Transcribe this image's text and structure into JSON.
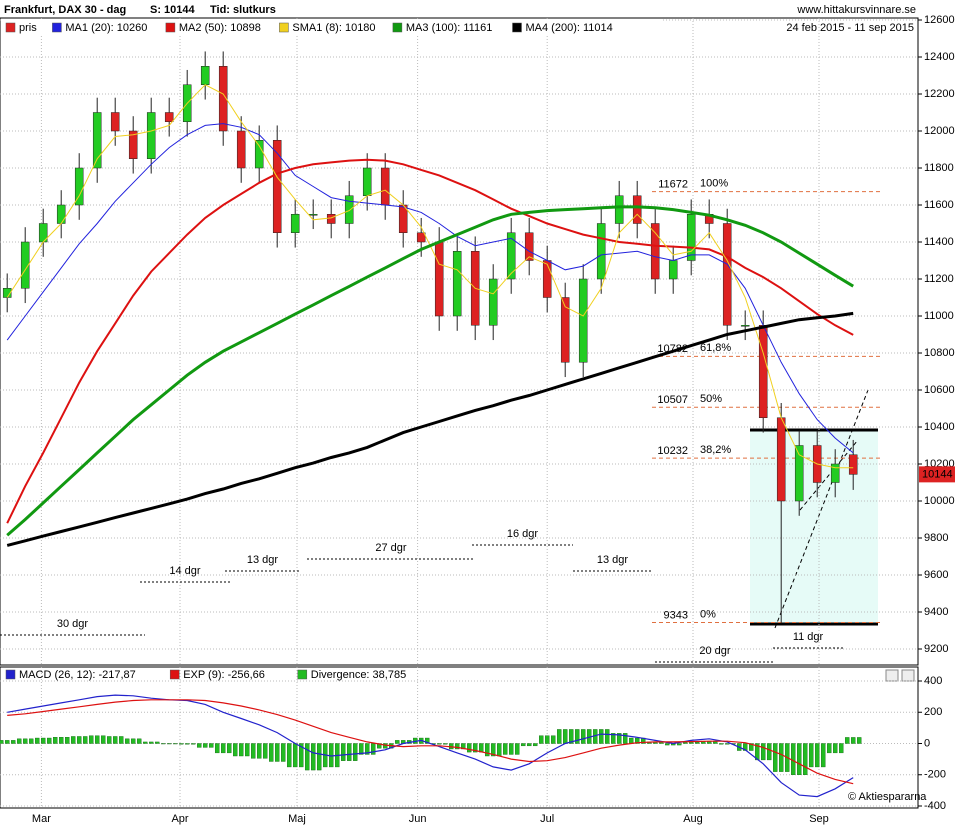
{
  "chart_data": [
    {
      "type": "candlestick",
      "title": "Frankfurt, DAX 30 - dag",
      "header": [
        "S: 10144",
        "Tid: slutkurs"
      ],
      "source": "www.hittakursvinnare.se",
      "date_range": "24 feb 2015 - 11 sep 2015",
      "xlim": [
        -0.4,
        50.6
      ],
      "xticks": [
        {
          "value": 1.9,
          "label": "Mar"
        },
        {
          "value": 9.6,
          "label": "Apr"
        },
        {
          "value": 16.1,
          "label": "Maj"
        },
        {
          "value": 22.8,
          "label": "Jun"
        },
        {
          "value": 30,
          "label": "Jul"
        },
        {
          "value": 38.1,
          "label": "Aug"
        },
        {
          "value": 45.1,
          "label": "Sep"
        }
      ],
      "ylim": [
        9200,
        12600
      ],
      "yticks": [
        9200,
        9400,
        9600,
        9800,
        10000,
        10200,
        10400,
        10600,
        10800,
        11000,
        11200,
        11400,
        11600,
        11800,
        12000,
        12200,
        12400,
        12600
      ],
      "grid": true,
      "candles": {
        "name": "pris",
        "color": "#dd2222",
        "up_color": "#22cc22",
        "open": [
          11100,
          11150,
          11400,
          11500,
          11600,
          11800,
          12100,
          12000,
          11850,
          12100,
          12050,
          12250,
          12350,
          12000,
          11800,
          11950,
          11450,
          11550,
          11550,
          11500,
          11650,
          11800,
          11600,
          11450,
          11400,
          11000,
          11350,
          10950,
          11200,
          11450,
          11300,
          11100,
          10750,
          11200,
          11500,
          11650,
          11500,
          11200,
          11300,
          11550,
          11500,
          10950,
          10950,
          10450,
          10000,
          10300,
          10100,
          10250
        ],
        "high": [
          11230,
          11480,
          11580,
          11680,
          11880,
          12180,
          12180,
          12080,
          12180,
          12180,
          12330,
          12430,
          12430,
          12080,
          12030,
          12030,
          11630,
          11630,
          11630,
          11730,
          11880,
          11880,
          11680,
          11530,
          11480,
          11430,
          11430,
          11280,
          11530,
          11530,
          11380,
          11180,
          11280,
          11580,
          11730,
          11730,
          11580,
          11380,
          11630,
          11630,
          11580,
          11030,
          11030,
          10530,
          10380,
          10380,
          10280,
          10330
        ],
        "low": [
          11020,
          11070,
          11320,
          11420,
          11520,
          11720,
          11920,
          11770,
          11770,
          11970,
          11970,
          12170,
          11920,
          11720,
          11720,
          11370,
          11370,
          11470,
          11420,
          11420,
          11570,
          11520,
          11370,
          11320,
          10920,
          10920,
          10870,
          10870,
          11120,
          11220,
          11020,
          10670,
          10670,
          11120,
          11420,
          11420,
          11120,
          11120,
          11220,
          11420,
          10870,
          10870,
          10370,
          9340,
          9920,
          10020,
          10020,
          10060
        ],
        "close": [
          11150,
          11400,
          11500,
          11600,
          11800,
          12100,
          12000,
          11850,
          12100,
          12050,
          12250,
          12350,
          12000,
          11800,
          11950,
          11450,
          11550,
          11550,
          11500,
          11650,
          11800,
          11600,
          11450,
          11400,
          11000,
          11350,
          10950,
          11200,
          11450,
          11300,
          11100,
          10750,
          11200,
          11500,
          11650,
          11500,
          11200,
          11300,
          11550,
          11500,
          10950,
          10950,
          10450,
          10000,
          10300,
          10100,
          10200,
          10144
        ]
      },
      "series": [
        {
          "name": "MA1 (20): 10260",
          "color": "#2222dd",
          "width": 1,
          "values": [
            10870,
            11000,
            11130,
            11260,
            11390,
            11500,
            11620,
            11720,
            11820,
            11910,
            11980,
            12030,
            12040,
            12020,
            11980,
            11880,
            11760,
            11700,
            11640,
            11620,
            11610,
            11600,
            11590,
            11560,
            11500,
            11430,
            11380,
            11400,
            11420,
            11350,
            11300,
            11250,
            11270,
            11330,
            11340,
            11350,
            11320,
            11300,
            11330,
            11330,
            11280,
            11150,
            10950,
            10750,
            10580,
            10440,
            10340,
            10260
          ]
        },
        {
          "name": "MA2 (50): 10898",
          "color": "#dd1111",
          "width": 2,
          "values": [
            9880,
            10080,
            10260,
            10450,
            10640,
            10810,
            10960,
            11110,
            11240,
            11340,
            11440,
            11530,
            11600,
            11660,
            11720,
            11770,
            11800,
            11820,
            11830,
            11840,
            11845,
            11840,
            11820,
            11790,
            11760,
            11720,
            11680,
            11630,
            11580,
            11540,
            11500,
            11470,
            11440,
            11420,
            11400,
            11390,
            11380,
            11375,
            11370,
            11360,
            11320,
            11260,
            11210,
            11150,
            11080,
            11010,
            10950,
            10898
          ]
        },
        {
          "name": "SMA1 (8): 10180",
          "color": "#f0d020",
          "width": 1,
          "values": [
            11100,
            11250,
            11400,
            11500,
            11650,
            11850,
            11970,
            11980,
            12000,
            12030,
            12150,
            12250,
            12200,
            12050,
            11920,
            11750,
            11630,
            11520,
            11530,
            11570,
            11650,
            11680,
            11600,
            11480,
            11280,
            11250,
            11150,
            11120,
            11230,
            11320,
            11280,
            11050,
            11000,
            11150,
            11450,
            11550,
            11450,
            11330,
            11350,
            11450,
            11300,
            11100,
            10800,
            10450,
            10250,
            10200,
            10180,
            10180
          ]
        },
        {
          "name": "MA3 (100): 11161",
          "color": "#119911",
          "width": 3,
          "values": [
            9815,
            9900,
            9990,
            10080,
            10170,
            10260,
            10350,
            10440,
            10520,
            10600,
            10680,
            10750,
            10810,
            10860,
            10910,
            10960,
            11010,
            11060,
            11110,
            11160,
            11210,
            11260,
            11310,
            11360,
            11400,
            11440,
            11480,
            11520,
            11550,
            11560,
            11570,
            11575,
            11580,
            11585,
            11590,
            11590,
            11585,
            11575,
            11560,
            11545,
            11520,
            11490,
            11450,
            11400,
            11340,
            11280,
            11220,
            11161
          ]
        },
        {
          "name": "MA4 (200): 11014",
          "color": "#000000",
          "width": 3,
          "values": [
            9760,
            9785,
            9810,
            9835,
            9860,
            9885,
            9910,
            9935,
            9960,
            9985,
            10010,
            10040,
            10065,
            10095,
            10120,
            10150,
            10180,
            10205,
            10235,
            10260,
            10290,
            10330,
            10370,
            10400,
            10430,
            10460,
            10490,
            10515,
            10545,
            10570,
            10600,
            10630,
            10660,
            10690,
            10720,
            10750,
            10780,
            10810,
            10840,
            10870,
            10900,
            10920,
            10940,
            10960,
            10980,
            10990,
            11000,
            11014
          ]
        }
      ],
      "last_price": 10144,
      "fib_levels": [
        {
          "value": 11672,
          "pct": "100%"
        },
        {
          "value": 10782,
          "pct": "61,8%"
        },
        {
          "value": 10507,
          "pct": "50%"
        },
        {
          "value": 10232,
          "pct": "38,2%"
        },
        {
          "value": 9343,
          "pct": "0%"
        }
      ],
      "annotations": [
        "30 dgr",
        "14 dgr",
        "13 dgr",
        "27 dgr",
        "16 dgr",
        "13 dgr",
        "20 dgr",
        "11 dgr"
      ]
    },
    {
      "type": "macd",
      "ylim": [
        -400,
        400
      ],
      "yticks": [
        -400,
        -200,
        0,
        200,
        400
      ],
      "copyright": "© Aktiespararna",
      "series": [
        {
          "name": "MACD (26, 12): -217,87",
          "color": "#2222cc",
          "kind": "line",
          "values": [
            200,
            220,
            240,
            260,
            280,
            300,
            310,
            305,
            290,
            280,
            275,
            250,
            200,
            160,
            120,
            70,
            0,
            -60,
            -80,
            -70,
            -60,
            -40,
            0,
            20,
            -20,
            -60,
            -100,
            -150,
            -170,
            -130,
            -60,
            0,
            30,
            60,
            55,
            40,
            20,
            0,
            20,
            30,
            10,
            -40,
            -130,
            -250,
            -330,
            -340,
            -290,
            -218
          ]
        },
        {
          "name": "EXP (9): -256,66",
          "color": "#dd1111",
          "kind": "line",
          "values": [
            180,
            190,
            205,
            220,
            235,
            250,
            265,
            275,
            280,
            280,
            280,
            275,
            260,
            240,
            215,
            185,
            150,
            110,
            70,
            40,
            10,
            -10,
            -20,
            -15,
            -15,
            -25,
            -45,
            -70,
            -100,
            -115,
            -110,
            -90,
            -60,
            -30,
            -10,
            5,
            10,
            10,
            12,
            15,
            15,
            5,
            -25,
            -70,
            -130,
            -190,
            -230,
            -257
          ]
        },
        {
          "name": "Divergence: 38,785",
          "color": "#22bb22",
          "kind": "bar",
          "values": [
            20,
            30,
            35,
            40,
            45,
            50,
            45,
            30,
            10,
            0,
            -5,
            -25,
            -60,
            -80,
            -95,
            -115,
            -150,
            -170,
            -150,
            -110,
            -70,
            -30,
            20,
            35,
            -5,
            -35,
            -55,
            -80,
            -70,
            -15,
            50,
            90,
            90,
            90,
            65,
            35,
            10,
            -10,
            8,
            15,
            -5,
            -45,
            -105,
            -180,
            -200,
            -150,
            -60,
            38.785
          ]
        }
      ]
    }
  ]
}
